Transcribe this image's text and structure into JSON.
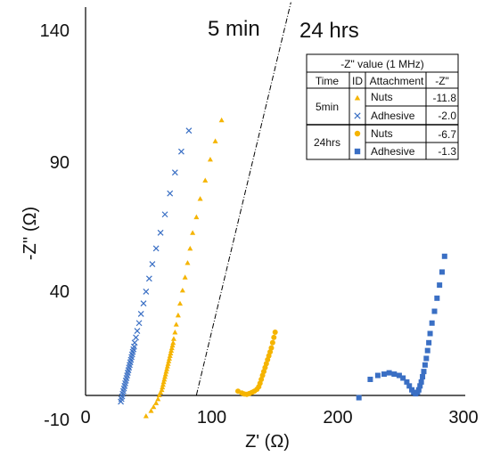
{
  "chart_data": {
    "type": "scatter",
    "xlabel": "Z' (Ω)",
    "ylabel": "-Z'' (Ω)",
    "xlim": [
      0,
      300
    ],
    "ylim": [
      -10,
      150
    ],
    "x_ticks": [
      "0",
      "100",
      "200",
      "300"
    ],
    "y_ticks": [
      "-10",
      "40",
      "90",
      "140"
    ],
    "annotations": {
      "left": "5 min",
      "right": "24 hrs"
    },
    "divider_line": [
      [
        88,
        0
      ],
      [
        163,
        150
      ]
    ],
    "colors": {
      "nuts": "#f5b400",
      "adhesive": "#3a6fc4"
    },
    "series": [
      {
        "name": "5min Nuts",
        "marker": "triangle",
        "color": "#f5b400",
        "x": [
          48,
          52,
          54,
          56,
          57.5,
          58.5,
          59.5,
          60.5,
          61,
          61.5,
          62,
          62.5,
          63,
          63.5,
          64,
          64.5,
          65,
          65.5,
          66,
          66.5,
          67,
          67.5,
          68,
          68.5,
          69,
          69.5,
          70,
          71,
          72,
          73.5,
          75,
          77,
          79,
          81,
          83,
          85,
          88,
          91,
          95,
          99,
          103,
          108
        ],
        "y": [
          -8,
          -6,
          -4.5,
          -3,
          -1.5,
          0,
          1,
          2,
          3,
          4,
          5,
          6,
          7,
          8,
          9,
          10,
          11,
          12,
          13,
          14,
          15,
          16,
          17,
          18,
          19,
          20,
          21.5,
          24,
          27,
          30.5,
          35,
          40,
          45,
          50.5,
          56,
          62,
          68,
          75,
          82,
          90,
          97,
          105
        ]
      },
      {
        "name": "5min Adhesive",
        "marker": "x",
        "color": "#3a6fc4",
        "x": [
          28,
          28.5,
          29,
          29.5,
          30,
          30.5,
          31,
          31.5,
          32,
          32.5,
          33,
          33.5,
          34,
          34.5,
          35,
          35.5,
          36,
          36.5,
          37,
          37.5,
          38,
          38.5,
          39,
          40,
          41,
          42.5,
          44,
          46,
          48,
          50.5,
          53,
          56,
          59.5,
          63,
          67,
          71,
          76,
          82
        ],
        "y": [
          -2.5,
          -1.5,
          -0.5,
          0.5,
          1.5,
          2.5,
          3.5,
          4.5,
          5.5,
          6.5,
          7.5,
          8.5,
          9.5,
          10.5,
          11.5,
          12.5,
          13.5,
          14.5,
          15.5,
          16.5,
          17.5,
          18.5,
          20,
          22,
          24.5,
          27.5,
          31,
          35,
          39.5,
          44.5,
          50,
          56,
          62,
          69,
          77,
          85,
          93,
          101
        ]
      },
      {
        "name": "24hrs Nuts",
        "marker": "circle",
        "color": "#f5b400",
        "x": [
          121,
          124,
          126,
          128,
          130,
          132,
          134,
          136,
          137.5,
          138.5,
          139.5,
          140.5,
          141.5,
          142.5,
          143.5,
          144.5,
          145.5,
          146.5,
          147.5,
          148.5,
          149.5,
          150.5
        ],
        "y": [
          1.5,
          0.8,
          0.4,
          0.3,
          0.6,
          1,
          1.5,
          2.2,
          3.2,
          4.5,
          6,
          7.5,
          9,
          10.5,
          12,
          13.5,
          15,
          16.5,
          18,
          20,
          22,
          24
        ]
      },
      {
        "name": "24hrs Adhesive",
        "marker": "square",
        "color": "#3a6fc4",
        "x": [
          217,
          226,
          232,
          237,
          241,
          245,
          249,
          252,
          255,
          257,
          259,
          260.5,
          262,
          263.5,
          264.5,
          265.5,
          266.5,
          267.5,
          268.5,
          269.5,
          270.5,
          271.5,
          272.5,
          273.5,
          275,
          277,
          279,
          281,
          283,
          285
        ],
        "y": [
          -1,
          6,
          7.5,
          8,
          8.5,
          8,
          7.5,
          6.5,
          5,
          3.5,
          2,
          1,
          0.5,
          1,
          2,
          3.5,
          5,
          7,
          9,
          11.5,
          14,
          17,
          20,
          23.5,
          27.5,
          32,
          37,
          42,
          47,
          53
        ]
      }
    ]
  },
  "table": {
    "title": "-Z\" value (1 MHz)",
    "headers": [
      "Time",
      "ID",
      "Attachment",
      "-Z\""
    ],
    "groups": [
      {
        "time": "5min",
        "rows": [
          {
            "marker": "triangle",
            "attachment": "Nuts",
            "value": "-11.8"
          },
          {
            "marker": "x",
            "attachment": "Adhesive",
            "value": "-2.0"
          }
        ]
      },
      {
        "time": "24hrs",
        "rows": [
          {
            "marker": "circle",
            "attachment": "Nuts",
            "value": "-6.7"
          },
          {
            "marker": "square",
            "attachment": "Adhesive",
            "value": "-1.3"
          }
        ]
      }
    ]
  }
}
